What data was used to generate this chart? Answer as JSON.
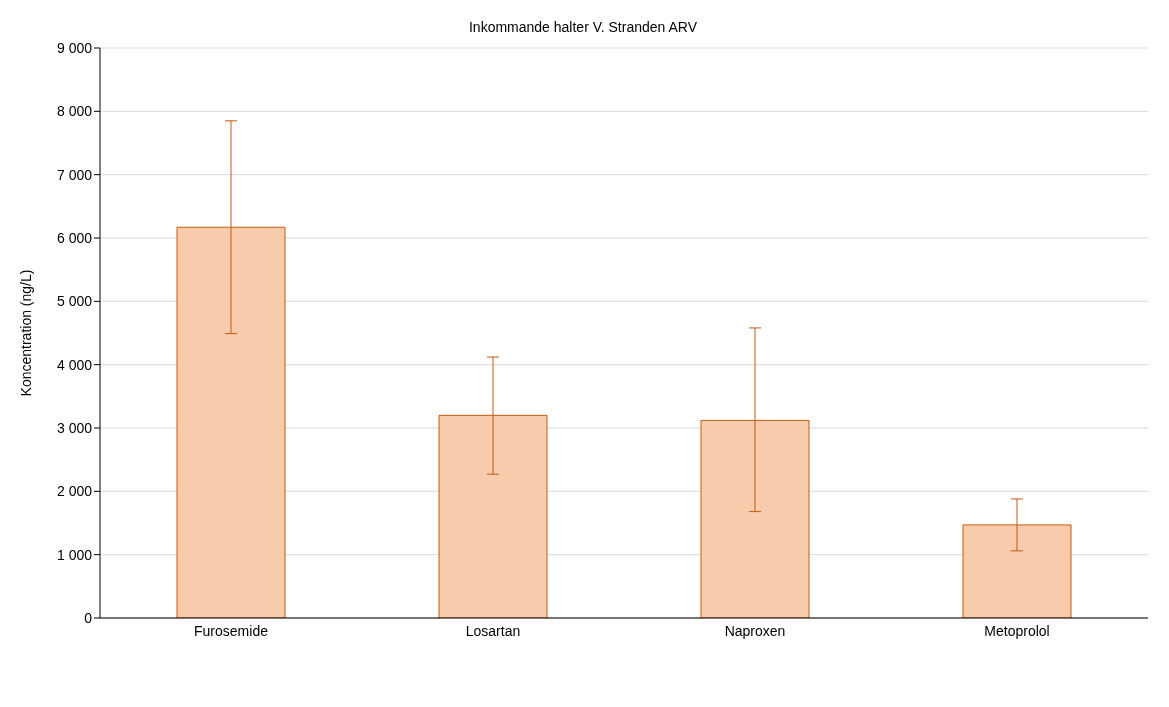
{
  "chart_data": {
    "type": "bar",
    "title": "Inkommande halter V. Stranden ARV",
    "ylabel": "Koncentration (ng/L)",
    "categories": [
      "Furosemide",
      "Losartan",
      "Naproxen",
      "Metoprolol"
    ],
    "values": [
      6170,
      3200,
      3120,
      1470
    ],
    "errors": [
      [
        4490,
        7850
      ],
      [
        2270,
        4120
      ],
      [
        1680,
        4580
      ],
      [
        1060,
        1880
      ]
    ],
    "color": "#f8cbad",
    "ylim": [
      0,
      9000
    ],
    "yticks": [
      {
        "value": 0,
        "label": "0"
      },
      {
        "value": 1000,
        "label": "1 000"
      },
      {
        "value": 2000,
        "label": "2 000"
      },
      {
        "value": 3000,
        "label": "3 000"
      },
      {
        "value": 4000,
        "label": "4 000"
      },
      {
        "value": 5000,
        "label": "5 000"
      },
      {
        "value": 6000,
        "label": "6 000"
      },
      {
        "value": 7000,
        "label": "7 000"
      },
      {
        "value": 8000,
        "label": "8 000"
      },
      {
        "value": 9000,
        "label": "9 000"
      }
    ],
    "grid": "y"
  }
}
